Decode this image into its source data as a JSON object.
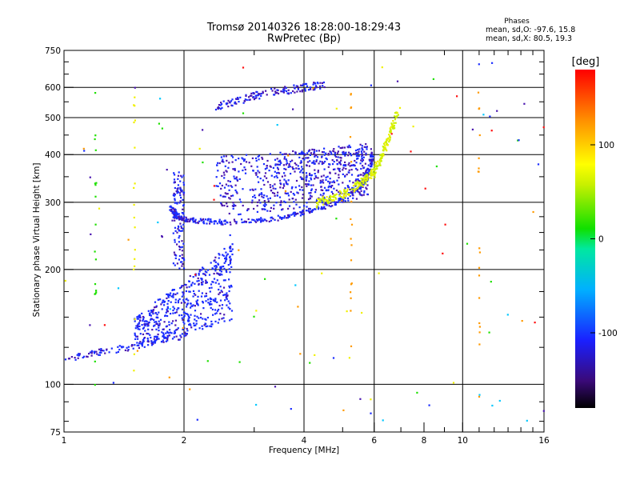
{
  "header": {
    "title_line1": "Tromsø 20140326 18:28:00-18:29:43",
    "title_line2": "RwPretec (Bp)"
  },
  "phase_box": {
    "title": "Phases",
    "o_line": "mean, sd,O: -97.6, 15.8",
    "x_line": "mean, sd,X:  80.5, 19.3"
  },
  "colorbar": {
    "unit": "[deg]",
    "tick_labels": [
      "100",
      "0",
      "-100"
    ]
  },
  "colors": {
    "blue": "#1a2cff",
    "purple": "#4a16b0",
    "yellow_green": "#c8f000",
    "yellow": "#f0f000",
    "orange": "#ff9a00",
    "green": "#1fe000",
    "cyan": "#00c8ff",
    "red": "#ff1010"
  },
  "chart_data": {
    "type": "scatter",
    "title": "Tromsø 20140326 18:28:00-18:29:43",
    "subtitle": "RwPretec (Bp)",
    "xlabel": "Frequency [MHz]",
    "ylabel": "Stationary phase Virtual Height [km]",
    "x_scale": "log",
    "y_scale": "log",
    "xlim": [
      1,
      16
    ],
    "ylim": [
      75,
      750
    ],
    "x_ticks": [
      1,
      2,
      4,
      6,
      8,
      10,
      16
    ],
    "x_tick_labels": [
      "1",
      "2",
      "4",
      "6",
      "8",
      "10",
      "16"
    ],
    "x_gridlines": [
      2,
      4,
      6,
      10
    ],
    "y_ticks": [
      75,
      100,
      200,
      300,
      400,
      500,
      600,
      750
    ],
    "y_tick_labels": [
      "75",
      "100",
      "200",
      "300",
      "400",
      "500",
      "600",
      "750"
    ],
    "y_gridlines": [
      100,
      200,
      300,
      400,
      500,
      600
    ],
    "colorbar": {
      "label": "[deg]",
      "ticks": [
        100,
        0,
        -100
      ],
      "range": [
        -180,
        180
      ]
    },
    "traces": [
      {
        "name": "O-mode low trace",
        "phase_deg": -100,
        "points": [
          [
            1.0,
            117
          ],
          [
            1.1,
            118
          ],
          [
            1.2,
            121
          ],
          [
            1.32,
            123
          ],
          [
            1.45,
            125
          ],
          [
            1.6,
            128
          ],
          [
            1.75,
            131
          ],
          [
            1.9,
            133
          ],
          [
            2.05,
            135
          ]
        ]
      },
      {
        "name": "O-mode E/F1 cloud",
        "phase_deg": -100,
        "freq_range": [
          1.5,
          2.7
        ],
        "height_range": [
          125,
          230
        ]
      },
      {
        "name": "O-mode F2 lower edge",
        "phase_deg": -100,
        "points": [
          [
            1.85,
            290
          ],
          [
            1.9,
            278
          ],
          [
            2.0,
            271
          ],
          [
            2.2,
            268
          ],
          [
            2.5,
            266
          ],
          [
            3.0,
            268
          ],
          [
            3.5,
            274
          ],
          [
            4.0,
            282
          ],
          [
            4.5,
            292
          ],
          [
            5.0,
            305
          ],
          [
            5.4,
            320
          ],
          [
            5.7,
            340
          ],
          [
            5.85,
            370
          ],
          [
            5.95,
            410
          ]
        ]
      },
      {
        "name": "O-mode F2 cloud",
        "phase_deg": -95,
        "freq_range": [
          2.4,
          5.9
        ],
        "height_range": [
          270,
          400
        ]
      },
      {
        "name": "O-mode high trace",
        "phase_deg": -110,
        "points": [
          [
            2.4,
            535
          ],
          [
            2.7,
            555
          ],
          [
            3.0,
            570
          ],
          [
            3.4,
            585
          ],
          [
            3.8,
            595
          ],
          [
            4.2,
            603
          ],
          [
            4.5,
            605
          ]
        ]
      },
      {
        "name": "X-mode trace",
        "phase_deg": 80,
        "points": [
          [
            4.3,
            298
          ],
          [
            4.6,
            305
          ],
          [
            5.0,
            315
          ],
          [
            5.4,
            330
          ],
          [
            5.7,
            345
          ],
          [
            6.0,
            360
          ],
          [
            6.2,
            385
          ],
          [
            6.4,
            420
          ],
          [
            6.6,
            460
          ],
          [
            6.9,
            520
          ]
        ]
      }
    ]
  }
}
